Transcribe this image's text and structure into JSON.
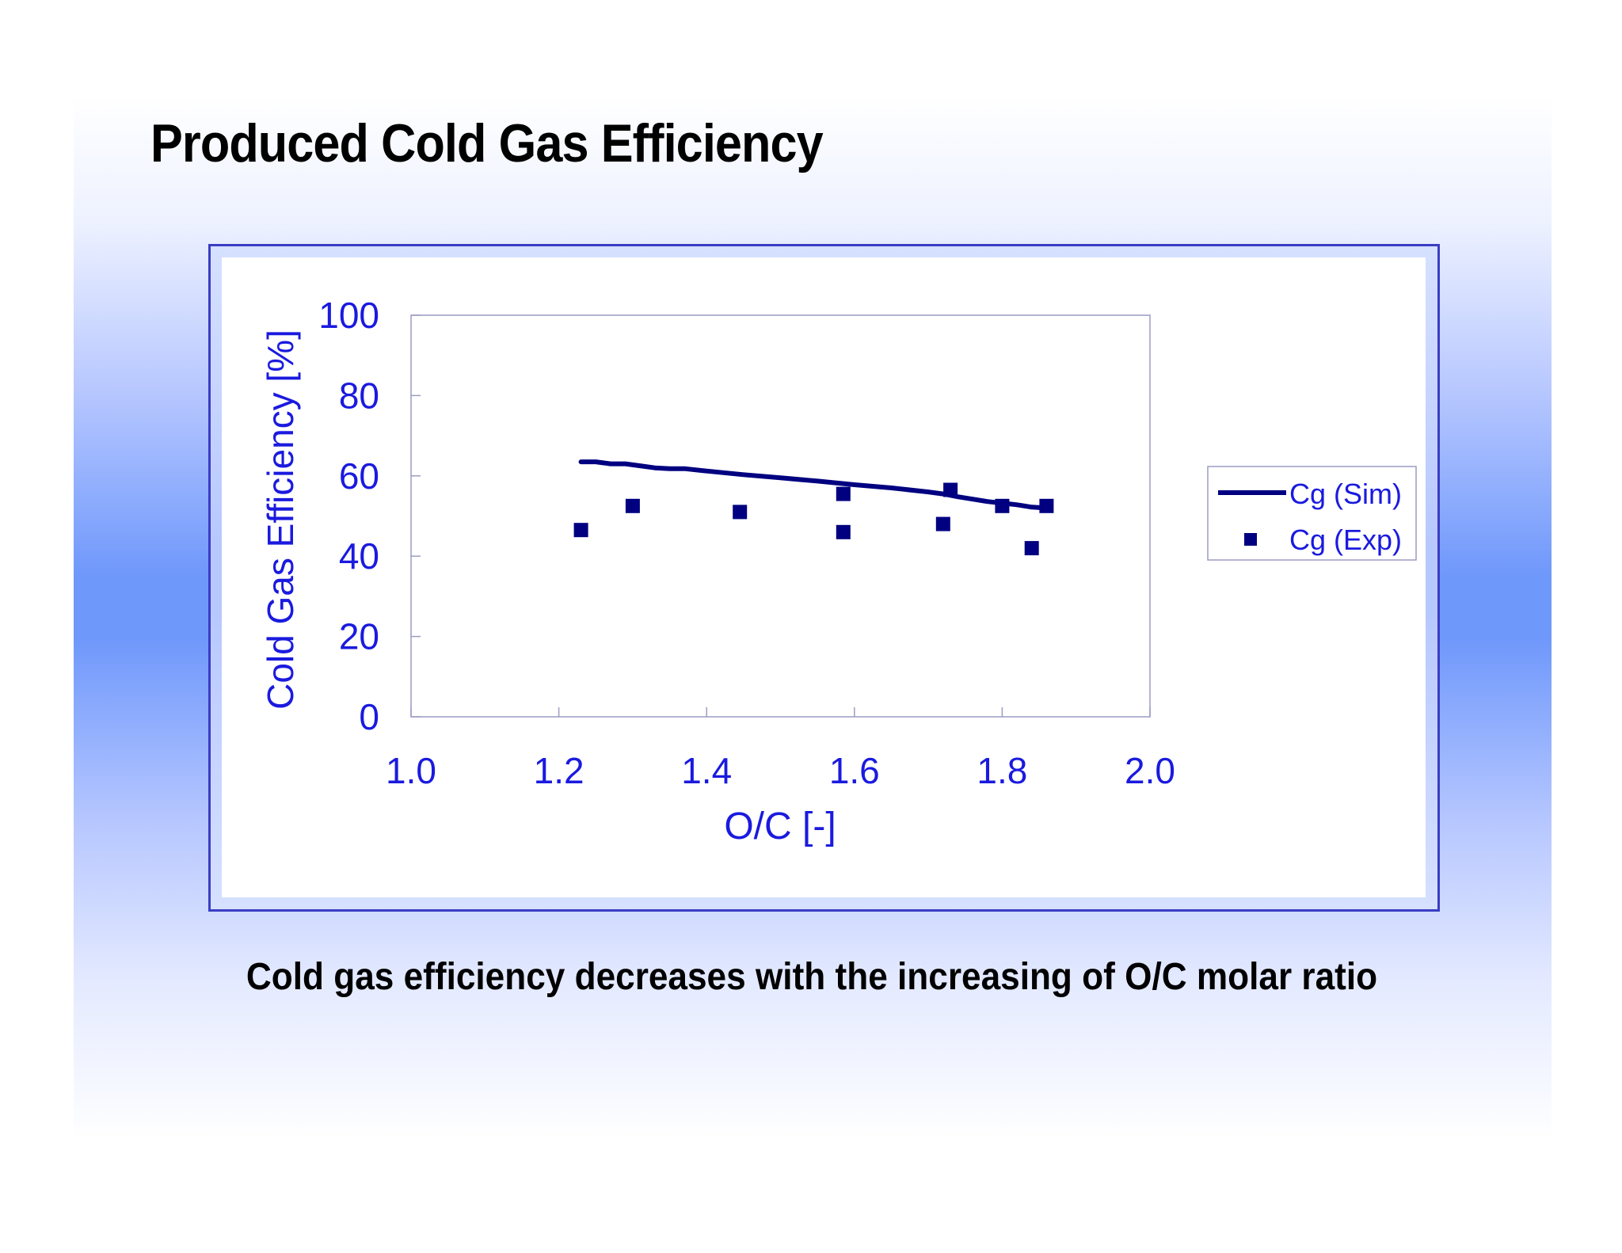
{
  "slide": {
    "title": "Produced Cold Gas Efficiency",
    "caption": "Cold gas efficiency decreases with the increasing of O/C molar ratio"
  },
  "colors": {
    "axis_text": "#1a1adf",
    "series": "#000080",
    "frame": "#3a3dc4"
  },
  "chart_data": {
    "type": "scatter",
    "xlabel": "O/C [-]",
    "ylabel": "Cold Gas Efficiency [%]",
    "xlim": [
      1.0,
      2.0
    ],
    "ylim": [
      0,
      100
    ],
    "xticks": [
      "1.0",
      "1.2",
      "1.4",
      "1.6",
      "1.8",
      "2.0"
    ],
    "yticks": [
      "0",
      "20",
      "40",
      "60",
      "80",
      "100"
    ],
    "grid": false,
    "legend_position": "right",
    "series": [
      {
        "name": "Cg (Sim)",
        "type": "line",
        "x": [
          1.23,
          1.25,
          1.27,
          1.29,
          1.31,
          1.33,
          1.35,
          1.37,
          1.4,
          1.45,
          1.5,
          1.55,
          1.6,
          1.65,
          1.7,
          1.72,
          1.74,
          1.76,
          1.78,
          1.8,
          1.82,
          1.84,
          1.86
        ],
        "y": [
          63.5,
          63.5,
          63.0,
          63.0,
          62.5,
          62.0,
          61.8,
          61.8,
          61.2,
          60.3,
          59.5,
          58.7,
          57.8,
          57.0,
          56.0,
          55.5,
          54.8,
          54.2,
          53.6,
          53.2,
          52.8,
          52.2,
          52.0
        ]
      },
      {
        "name": "Cg (Exp)",
        "type": "scatter",
        "x": [
          1.23,
          1.3,
          1.445,
          1.585,
          1.585,
          1.72,
          1.73,
          1.8,
          1.84,
          1.86
        ],
        "y": [
          46.5,
          52.5,
          51.0,
          46.0,
          55.5,
          48.0,
          56.5,
          52.5,
          42.0,
          52.5
        ]
      }
    ]
  }
}
